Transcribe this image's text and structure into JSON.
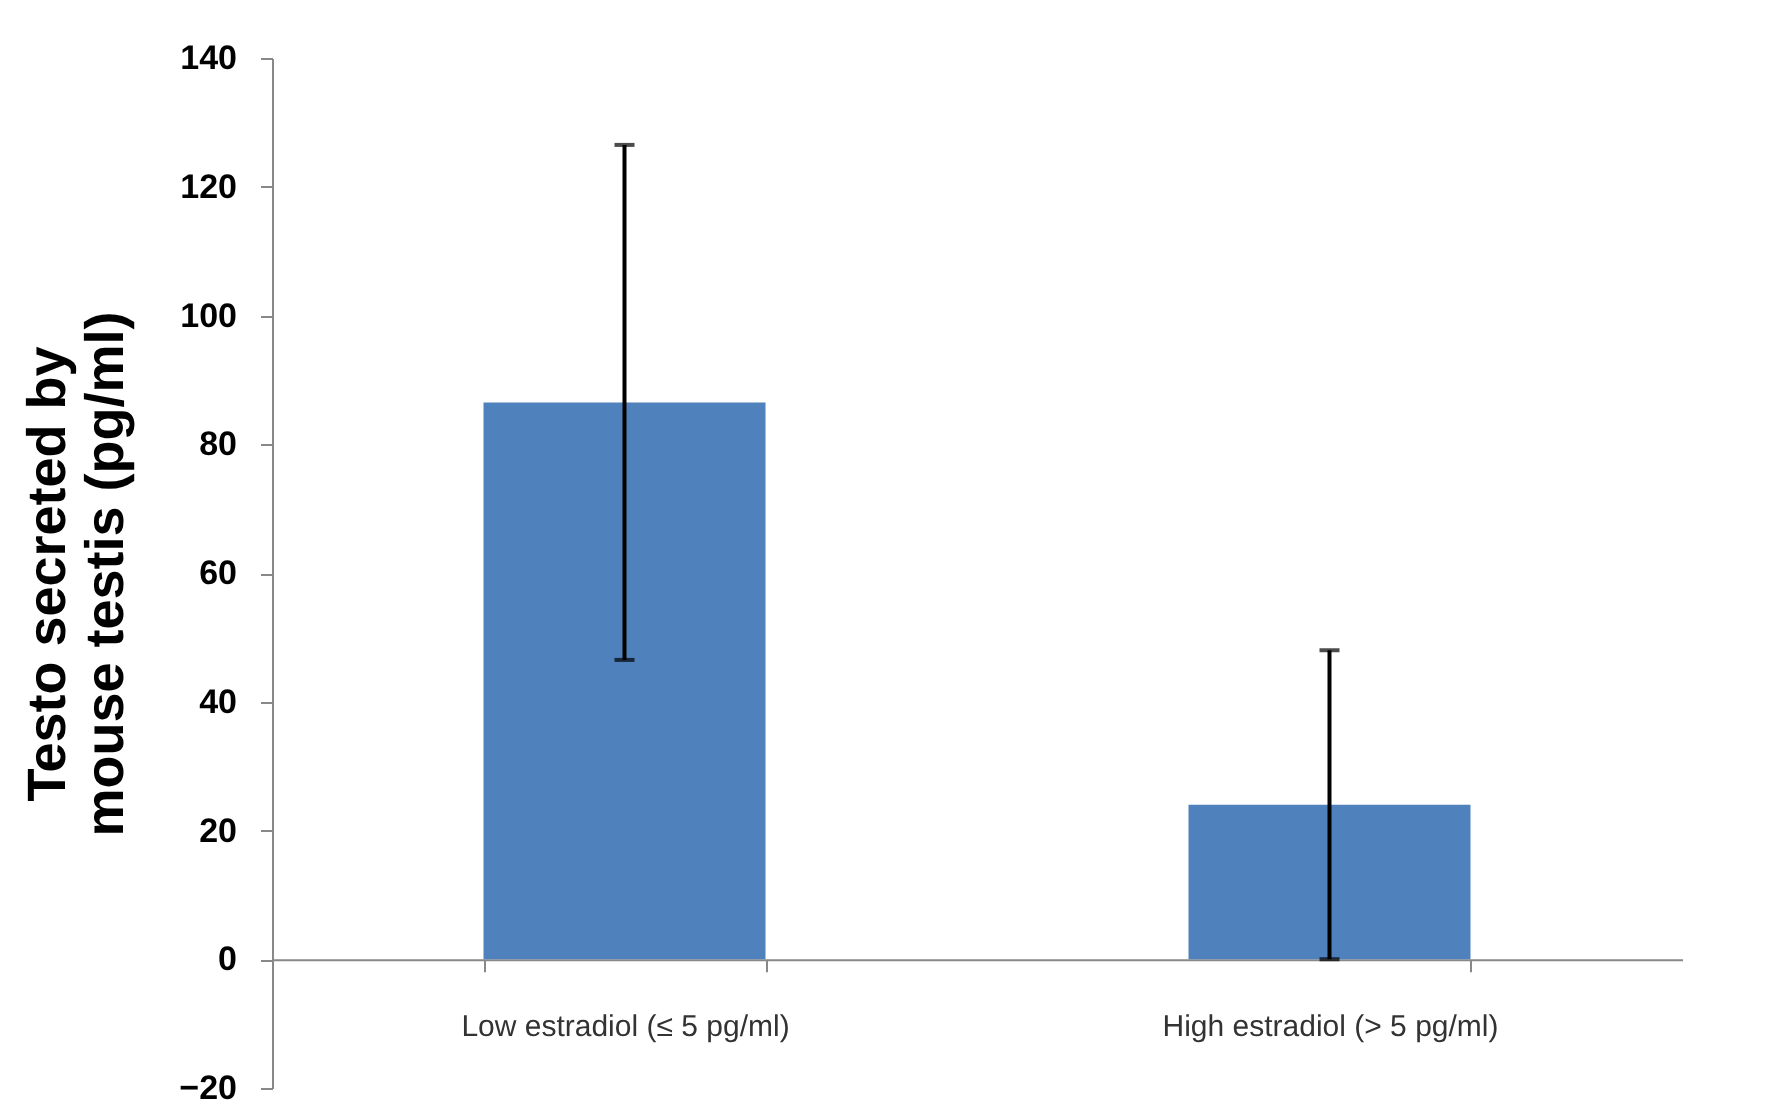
{
  "chart_data": {
    "type": "bar",
    "ylabel": "Testo secreted by\nmouse testis (pg/ml)",
    "categories": [
      "Low estradiol (≤ 5 pg/ml)",
      "High estradiol (> 5 pg/ml)"
    ],
    "values": [
      86.5,
      24
    ],
    "errors": [
      40,
      24
    ],
    "color": "#4f81bd",
    "ylim": [
      -20,
      140
    ],
    "yticks": [
      -20,
      0,
      20,
      40,
      60,
      80,
      100,
      120,
      140
    ],
    "grid": false
  }
}
